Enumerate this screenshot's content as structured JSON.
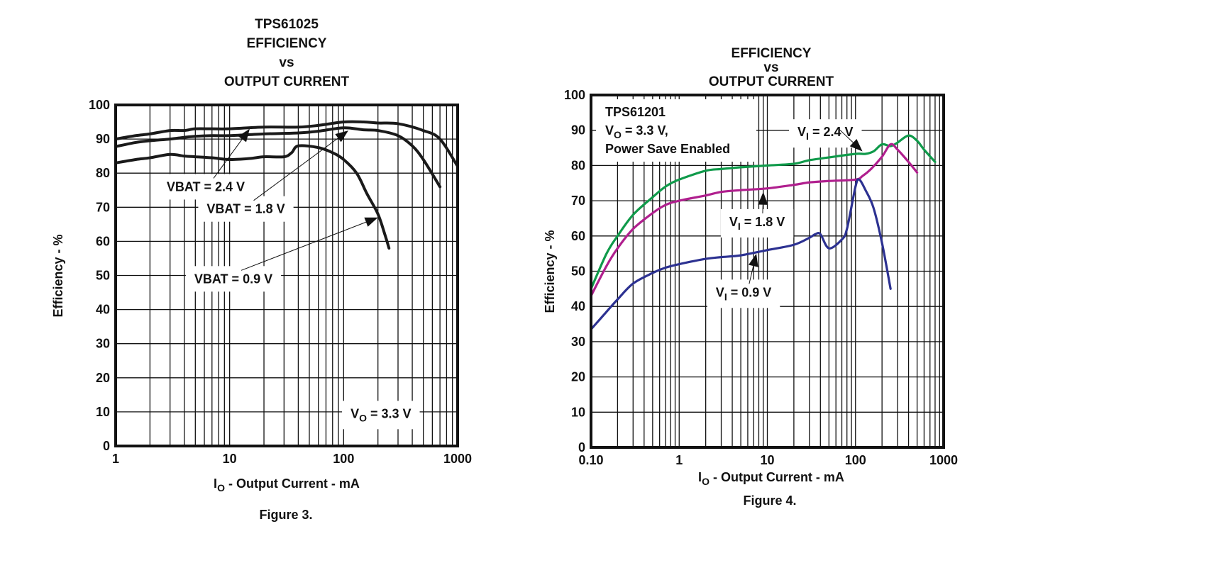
{
  "chart_data": [
    {
      "type": "line",
      "title": [
        "TPS61025",
        "EFFICIENCY",
        "vs",
        "OUTPUT CURRENT"
      ],
      "xlabel": "I_O - Output Current - mA",
      "xlabel_main": "I",
      "xlabel_sub": "O",
      "xlabel_rest": " - Output Current - mA",
      "ylabel": "Efficiency - %",
      "xscale": "log",
      "xlim": [
        1,
        1000
      ],
      "ylim": [
        0,
        100
      ],
      "x_ticks": [
        1,
        10,
        100,
        1000
      ],
      "x_tick_labels": [
        "1",
        "10",
        "100",
        "1000"
      ],
      "y_ticks": [
        0,
        10,
        20,
        30,
        40,
        50,
        60,
        70,
        80,
        90,
        100
      ],
      "y_tick_labels": [
        "0",
        "10",
        "20",
        "30",
        "40",
        "50",
        "60",
        "70",
        "80",
        "90",
        "100"
      ],
      "grid": true,
      "caption": "Figure 3.",
      "series": [
        {
          "name": "VBAT = 2.4 V",
          "color": "#1a1a1a",
          "x": [
            1,
            1.5,
            2,
            3,
            4,
            5,
            7,
            10,
            20,
            40,
            60,
            100,
            150,
            200,
            300,
            500,
            700,
            1000
          ],
          "y": [
            90,
            91,
            91.5,
            92.5,
            92.5,
            93,
            93,
            93,
            93.5,
            93.5,
            94,
            95,
            95,
            94.7,
            94.5,
            92.5,
            90,
            82
          ]
        },
        {
          "name": "VBAT = 1.8 V",
          "color": "#1a1a1a",
          "x": [
            1,
            1.5,
            2,
            3,
            4,
            5,
            7,
            10,
            20,
            40,
            60,
            100,
            150,
            200,
            300,
            400,
            500,
            700
          ],
          "y": [
            87.8,
            89,
            89.5,
            90,
            90.5,
            90.8,
            91,
            91,
            91.5,
            91.8,
            92.3,
            93.3,
            92.7,
            92.5,
            91,
            88,
            84,
            76
          ]
        },
        {
          "name": "VBAT = 0.9 V",
          "color": "#1a1a1a",
          "x": [
            1,
            1.5,
            2,
            3,
            4,
            5,
            7,
            10,
            15,
            20,
            30,
            35,
            40,
            60,
            80,
            100,
            130,
            160,
            200,
            230,
            250
          ],
          "y": [
            83,
            84,
            84.5,
            85.5,
            85,
            84.8,
            84.5,
            84,
            84.3,
            84.8,
            84.8,
            86,
            88,
            87.5,
            86,
            84,
            80,
            74,
            68,
            62,
            58
          ]
        }
      ],
      "annotations": [
        {
          "text": "VBAT = 2.4 V",
          "x": 2.8,
          "y": 76,
          "arrow_to": [
            15,
            93
          ]
        },
        {
          "text": "VBAT = 1.8 V",
          "x": 6.3,
          "y": 69.5,
          "arrow_to": [
            110,
            92.5
          ]
        },
        {
          "text": "VBAT = 0.9 V",
          "x": 4.9,
          "y": 49,
          "arrow_to": [
            200,
            67
          ]
        },
        {
          "text_main": "V",
          "text_sub": "O",
          "text_rest": " = 3.3 V",
          "x": 115,
          "y": 9.5
        }
      ]
    },
    {
      "type": "line",
      "title": [
        "EFFICIENCY",
        "vs",
        "OUTPUT CURRENT"
      ],
      "xlabel": "I_O - Output Current - mA",
      "xlabel_main": "I",
      "xlabel_sub": "O",
      "xlabel_rest": " - Output Current - mA",
      "ylabel": "Efficiency - %",
      "xscale": "log",
      "xlim": [
        0.1,
        1000
      ],
      "ylim": [
        0,
        100
      ],
      "x_ticks": [
        0.1,
        1,
        10,
        100,
        1000
      ],
      "x_tick_labels": [
        "0.10",
        "1",
        "10",
        "100",
        "1000"
      ],
      "y_ticks": [
        0,
        10,
        20,
        30,
        40,
        50,
        60,
        70,
        80,
        90,
        100
      ],
      "y_tick_labels": [
        "0",
        "10",
        "20",
        "30",
        "40",
        "50",
        "60",
        "70",
        "80",
        "90",
        "100"
      ],
      "grid": true,
      "caption": "Figure 4.",
      "info_box": {
        "line1": "TPS61201",
        "line2_main": "V",
        "line2_sub": "O",
        "line2_rest": " = 3.3 V,",
        "line3": "Power Save Enabled"
      },
      "series": [
        {
          "name": "VI = 2.4 V",
          "color": "#0f9a4a",
          "x": [
            0.1,
            0.15,
            0.2,
            0.3,
            0.5,
            0.7,
            1,
            2,
            3,
            5,
            10,
            20,
            30,
            50,
            100,
            130,
            160,
            200,
            250,
            300,
            400,
            500,
            600,
            800
          ],
          "y": [
            45,
            55,
            60,
            66,
            71,
            74,
            76,
            78.5,
            79,
            79.5,
            80,
            80.5,
            81.5,
            82.3,
            83.3,
            83.3,
            84,
            86,
            85.5,
            86.5,
            88.5,
            87,
            84.5,
            81
          ]
        },
        {
          "name": "VI = 1.8 V",
          "color": "#b01f8e",
          "x": [
            0.1,
            0.15,
            0.2,
            0.3,
            0.5,
            0.7,
            1,
            2,
            3,
            5,
            10,
            20,
            30,
            50,
            100,
            120,
            150,
            200,
            250,
            300,
            400,
            500
          ],
          "y": [
            43,
            51.5,
            56.5,
            62,
            66.5,
            68.8,
            70,
            71.5,
            72.5,
            73,
            73.5,
            74.5,
            75.2,
            75.6,
            76,
            77,
            79,
            82.5,
            86,
            84.5,
            81,
            78
          ]
        },
        {
          "name": "VI = 0.9 V",
          "color": "#2c3191",
          "x": [
            0.1,
            0.15,
            0.2,
            0.3,
            0.5,
            0.7,
            1,
            2,
            3,
            5,
            10,
            20,
            30,
            35,
            40,
            50,
            70,
            80,
            100,
            110,
            130,
            160,
            200,
            250
          ],
          "y": [
            33.5,
            38.5,
            42,
            46.5,
            49.5,
            51,
            52,
            53.5,
            54,
            54.5,
            56,
            57.5,
            59.5,
            60.5,
            60.5,
            56.5,
            59,
            62,
            74,
            76,
            73,
            68,
            58,
            45
          ]
        }
      ],
      "annotations": [
        {
          "text_main": "V",
          "text_sub": "I",
          "text_rest": " = 2.4 V",
          "x": 22,
          "y": 89.5,
          "arrow_to": [
            120,
            84
          ]
        },
        {
          "text_main": "V",
          "text_sub": "I",
          "text_rest": " = 1.8 V",
          "x": 3.7,
          "y": 64,
          "arrow_to": [
            9,
            72.5
          ]
        },
        {
          "text_main": "V",
          "text_sub": "I",
          "text_rest": " = 0.9 V",
          "x": 2.6,
          "y": 44,
          "arrow_to": [
            7.5,
            55
          ]
        }
      ]
    }
  ]
}
